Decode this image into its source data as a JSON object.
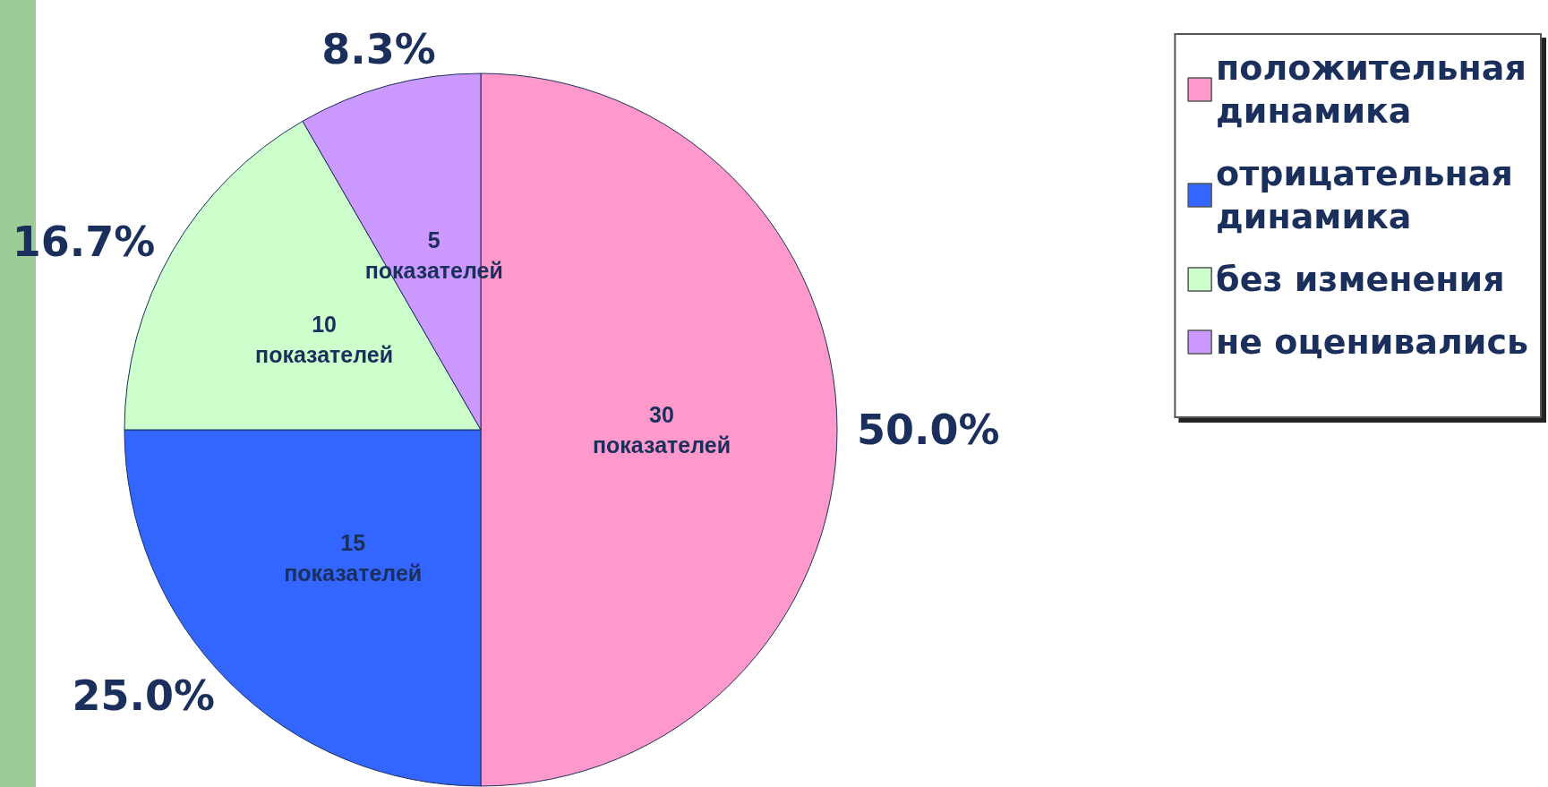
{
  "chart_data": {
    "type": "pie",
    "categories": [
      "положительная динамика",
      "отрицательная динамика",
      "без изменения",
      "не оценивались"
    ],
    "values": [
      30,
      15,
      10,
      5
    ],
    "colors": [
      "#ff99cc",
      "#3366ff",
      "#ccffcc",
      "#cc99ff"
    ],
    "value_labels": [
      "30 показателей",
      "15 показателей",
      "10 показателей",
      "5 показателей"
    ],
    "annotations": [
      "50.0%",
      "25.0%",
      "16.7%",
      "8.3%"
    ],
    "legend": "top right"
  }
}
